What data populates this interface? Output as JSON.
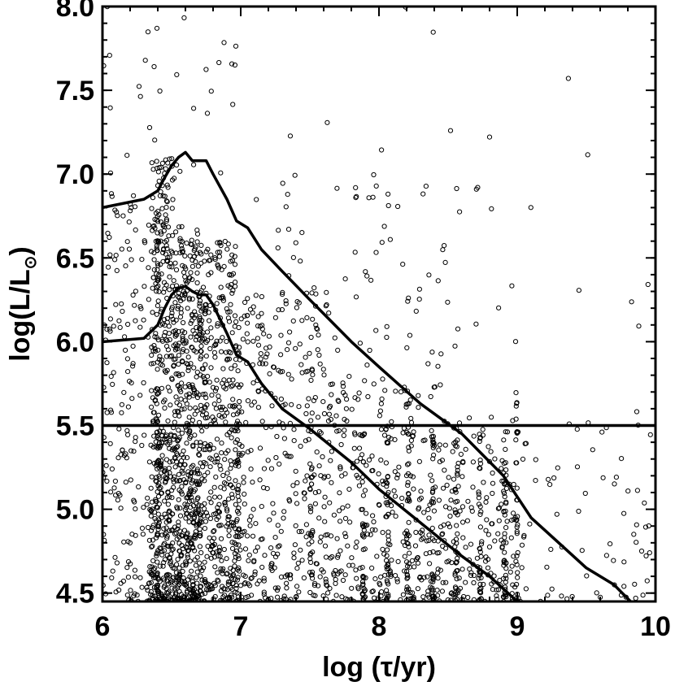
{
  "chart_data": {
    "type": "scatter",
    "title": "",
    "xlabel": "log (τ/yr)",
    "ylabel_main": "log(L/L",
    "ylabel_sub": "⊙",
    "ylabel_close": ")",
    "xlim": [
      6,
      10
    ],
    "ylim": [
      4.45,
      8.0
    ],
    "x_ticks": [
      {
        "value": 6,
        "label": "6"
      },
      {
        "value": 7,
        "label": "7"
      },
      {
        "value": 8,
        "label": "8"
      },
      {
        "value": 9,
        "label": "9"
      },
      {
        "value": 10,
        "label": "10"
      }
    ],
    "y_ticks": [
      {
        "value": 4.5,
        "label": "4.5"
      },
      {
        "value": 5.0,
        "label": "5.0"
      },
      {
        "value": 5.5,
        "label": "5.5"
      },
      {
        "value": 6.0,
        "label": "6.0"
      },
      {
        "value": 6.5,
        "label": "6.5"
      },
      {
        "value": 7.0,
        "label": "7.0"
      },
      {
        "value": 7.5,
        "label": "7.5"
      },
      {
        "value": 8.0,
        "label": "8.0"
      }
    ],
    "grid": false,
    "legend": "none",
    "marker": "open-circle",
    "marker_color": "#000000",
    "line_color": "#000000",
    "hline": 5.5,
    "upper_curve": [
      [
        6.0,
        6.8
      ],
      [
        6.3,
        6.85
      ],
      [
        6.4,
        6.9
      ],
      [
        6.45,
        6.98
      ],
      [
        6.5,
        7.05
      ],
      [
        6.55,
        7.1
      ],
      [
        6.6,
        7.13
      ],
      [
        6.65,
        7.08
      ],
      [
        6.7,
        7.08
      ],
      [
        6.75,
        7.08
      ],
      [
        6.8,
        7.0
      ],
      [
        6.9,
        6.85
      ],
      [
        6.97,
        6.72
      ],
      [
        7.05,
        6.68
      ],
      [
        7.15,
        6.55
      ],
      [
        7.3,
        6.42
      ],
      [
        7.5,
        6.25
      ],
      [
        7.8,
        6.0
      ],
      [
        8.0,
        5.85
      ],
      [
        8.3,
        5.63
      ],
      [
        8.6,
        5.45
      ],
      [
        8.9,
        5.2
      ],
      [
        9.1,
        4.95
      ],
      [
        9.3,
        4.8
      ],
      [
        9.5,
        4.65
      ],
      [
        9.7,
        4.55
      ],
      [
        9.82,
        4.45
      ]
    ],
    "lower_curve": [
      [
        6.0,
        6.0
      ],
      [
        6.3,
        6.02
      ],
      [
        6.4,
        6.1
      ],
      [
        6.45,
        6.2
      ],
      [
        6.5,
        6.28
      ],
      [
        6.55,
        6.32
      ],
      [
        6.6,
        6.33
      ],
      [
        6.65,
        6.3
      ],
      [
        6.7,
        6.28
      ],
      [
        6.75,
        6.28
      ],
      [
        6.8,
        6.22
      ],
      [
        6.9,
        6.05
      ],
      [
        6.97,
        5.92
      ],
      [
        7.05,
        5.88
      ],
      [
        7.15,
        5.75
      ],
      [
        7.3,
        5.6
      ],
      [
        7.5,
        5.48
      ],
      [
        7.8,
        5.28
      ],
      [
        8.0,
        5.12
      ],
      [
        8.3,
        4.92
      ],
      [
        8.6,
        4.72
      ],
      [
        8.8,
        4.6
      ],
      [
        9.0,
        4.45
      ]
    ],
    "scatter_groups": [
      {
        "x_range": [
          6.35,
          6.52
        ],
        "y_range": [
          4.45,
          7.1
        ],
        "count": 420,
        "vertical_column": false
      },
      {
        "x_range": [
          6.52,
          6.72
        ],
        "y_range": [
          4.45,
          6.7
        ],
        "count": 520,
        "vertical_column": false
      },
      {
        "x_range": [
          6.72,
          6.97
        ],
        "y_range": [
          4.45,
          6.6
        ],
        "count": 380,
        "vertical_column": false
      },
      {
        "x_range": [
          6.0,
          6.35
        ],
        "y_range": [
          4.45,
          6.9
        ],
        "count": 170,
        "vertical_column": false
      },
      {
        "x_range": [
          6.97,
          7.6
        ],
        "y_range": [
          4.45,
          6.3
        ],
        "count": 300,
        "vertical_column": false
      },
      {
        "x_range": [
          7.6,
          8.3
        ],
        "y_range": [
          4.45,
          5.8
        ],
        "count": 260,
        "vertical_column": false
      },
      {
        "x_range": [
          8.3,
          9.0
        ],
        "y_range": [
          4.45,
          5.55
        ],
        "count": 230,
        "vertical_column": false
      },
      {
        "x_range": [
          9.0,
          10.0
        ],
        "y_range": [
          4.45,
          5.6
        ],
        "count": 70,
        "vertical_column": false
      },
      {
        "x_range": [
          7.2,
          8.6
        ],
        "y_range": [
          5.6,
          7.0
        ],
        "count": 90,
        "vertical_column": false
      },
      {
        "x_range": [
          6.0,
          7.0
        ],
        "y_range": [
          7.0,
          8.0
        ],
        "count": 35,
        "vertical_column": false
      },
      {
        "x_range": [
          7.0,
          10.0
        ],
        "y_range": [
          6.0,
          8.0
        ],
        "count": 30,
        "vertical_column": false
      },
      {
        "x_range": [
          8.05,
          8.07
        ],
        "y_range": [
          4.45,
          5.5
        ],
        "count": 40,
        "vertical_column": true
      },
      {
        "x_range": [
          8.2,
          8.22
        ],
        "y_range": [
          4.45,
          5.5
        ],
        "count": 40,
        "vertical_column": true
      },
      {
        "x_range": [
          8.38,
          8.4
        ],
        "y_range": [
          4.45,
          5.55
        ],
        "count": 40,
        "vertical_column": true
      },
      {
        "x_range": [
          8.55,
          8.57
        ],
        "y_range": [
          4.45,
          5.5
        ],
        "count": 35,
        "vertical_column": true
      },
      {
        "x_range": [
          8.72,
          8.74
        ],
        "y_range": [
          4.45,
          5.45
        ],
        "count": 35,
        "vertical_column": true
      },
      {
        "x_range": [
          8.9,
          8.92
        ],
        "y_range": [
          4.45,
          5.5
        ],
        "count": 35,
        "vertical_column": true
      },
      {
        "x_range": [
          8.99,
          9.01
        ],
        "y_range": [
          4.45,
          5.7
        ],
        "count": 30,
        "vertical_column": true
      },
      {
        "x_range": [
          7.88,
          7.9
        ],
        "y_range": [
          4.45,
          5.5
        ],
        "count": 30,
        "vertical_column": true
      },
      {
        "x_range": [
          7.5,
          7.52
        ],
        "y_range": [
          4.45,
          5.6
        ],
        "count": 30,
        "vertical_column": true
      },
      {
        "x_range": [
          6.39,
          6.41
        ],
        "y_range": [
          4.45,
          6.8
        ],
        "count": 60,
        "vertical_column": true
      },
      {
        "x_range": [
          6.97,
          6.99
        ],
        "y_range": [
          4.45,
          6.0
        ],
        "count": 50,
        "vertical_column": true
      }
    ]
  }
}
